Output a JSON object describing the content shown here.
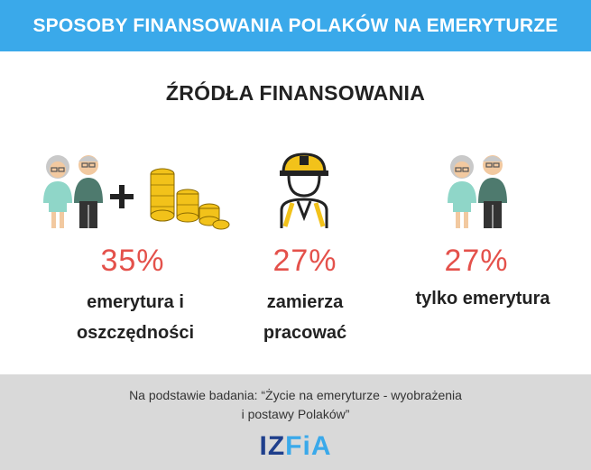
{
  "header": {
    "title": "SPOSOBY FINANSOWANIA POLAKÓW NA EMERYTURZE"
  },
  "subtitle": "ŹRÓDŁA FINANSOWANIA",
  "sources": [
    {
      "percent": "35%",
      "label_line1": "emerytura i",
      "label_line2": "oszczędności",
      "icons": [
        "elderly-couple-icon",
        "plus-icon",
        "coins-icon"
      ]
    },
    {
      "percent": "27%",
      "label_line1": "zamierza",
      "label_line2": "pracować",
      "icons": [
        "worker-helmet-icon"
      ]
    },
    {
      "percent": "27%",
      "label_line1": "tylko emerytura",
      "label_line2": "",
      "icons": [
        "elderly-couple-icon"
      ]
    }
  ],
  "footer": {
    "source_line1": "Na podstawie badania: “Życie na emeryturze - wyobrażenia",
    "source_line2": "i postawy Polaków”",
    "logo_part1": "IZ",
    "logo_part2": "FiA"
  },
  "colors": {
    "header_bg": "#3aa9ea",
    "percent": "#e4514b",
    "footer_bg": "#d9d9d9",
    "logo_dark": "#1f3f8c",
    "logo_light": "#3aa9ea"
  }
}
